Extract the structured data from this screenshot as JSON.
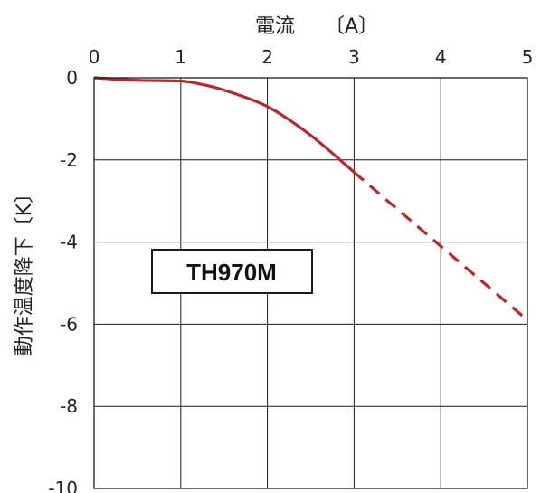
{
  "chart_data": {
    "type": "line",
    "xlabel": "電流　　〔A〕",
    "ylabel": "動作温度降下〔K〕",
    "x_ticks": [
      "0",
      "1",
      "2",
      "3",
      "4",
      "5"
    ],
    "y_ticks": [
      "0",
      "-2",
      "-4",
      "-6",
      "-8",
      "-10"
    ],
    "xlim": [
      0,
      5
    ],
    "ylim": [
      -10,
      0
    ],
    "x_axis_position": "top",
    "grid": true,
    "annotation": "TH970M",
    "series": [
      {
        "style": "solid",
        "color": "#b22a2f",
        "x": [
          0,
          0.5,
          1.0,
          1.2,
          1.5,
          2.0,
          2.5,
          3.0
        ],
        "y": [
          0,
          -0.06,
          -0.08,
          -0.14,
          -0.3,
          -0.7,
          -1.4,
          -2.3
        ]
      },
      {
        "style": "dashed",
        "color": "#b22a2f",
        "x": [
          3.0,
          3.5,
          4.0,
          4.5,
          5.0
        ],
        "y": [
          -2.3,
          -3.2,
          -4.1,
          -5.0,
          -5.9
        ]
      }
    ]
  }
}
